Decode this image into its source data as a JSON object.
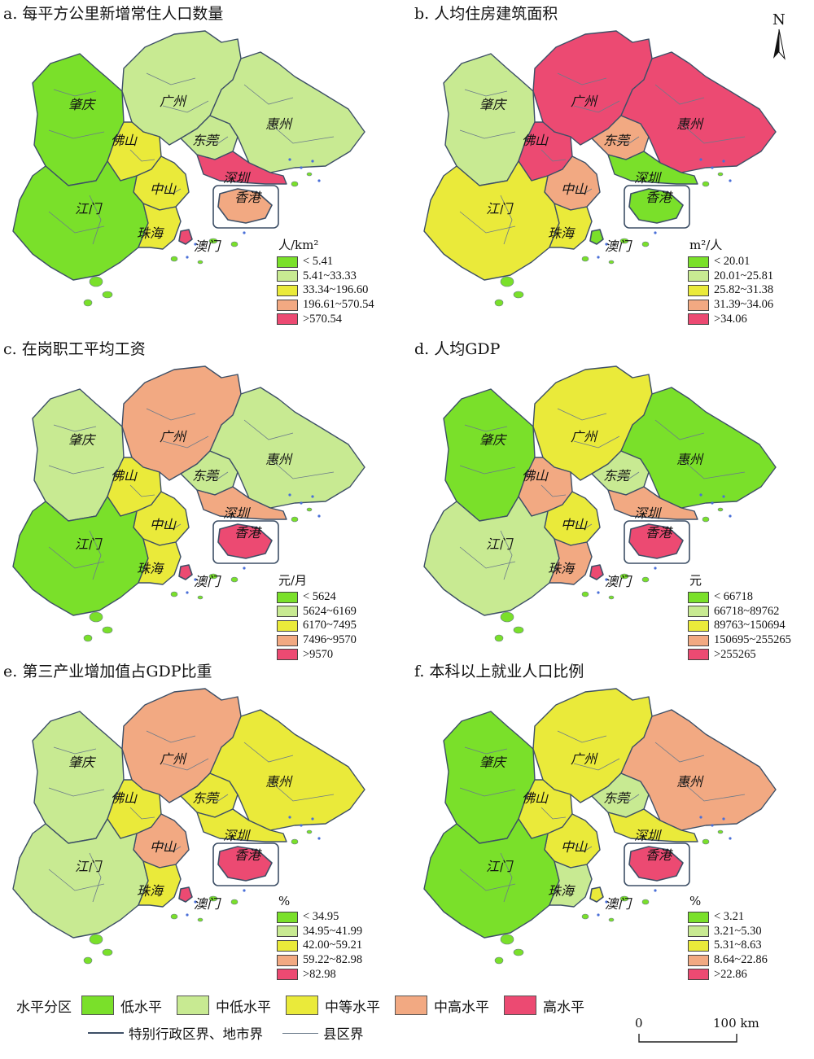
{
  "colors": {
    "low": "#7ae02a",
    "mid_low": "#c8ea92",
    "mid": "#eaea3a",
    "mid_high": "#f2a982",
    "high": "#ec4a72",
    "boundary_major": "#3d4f66",
    "boundary_county": "#6a7a8a",
    "water_dots": "#4a6fd8"
  },
  "north_arrow": {
    "label": "N"
  },
  "city_labels": [
    "肇庆",
    "广州",
    "佛山",
    "东莞",
    "惠州",
    "深圳",
    "中山",
    "江门",
    "香港",
    "珠海",
    "澳门"
  ],
  "panels": [
    {
      "id": "a",
      "title": "a. 每平方公里新增常住人口数量",
      "legend_unit": "人/km²",
      "legend_classes": [
        "< 5.41",
        "5.41~33.33",
        "33.34~196.60",
        "196.61~570.54",
        ">570.54"
      ],
      "levels": {
        "zhaoqing": "low",
        "jiangmen": "low",
        "huizhou": "mid_low",
        "guangzhou": "mid_low",
        "foshan": "mid",
        "dongguan": "mid_low",
        "shenzhen": "high",
        "zhongshan": "mid",
        "zhuhai": "mid",
        "hongkong": "mid_high",
        "macau": "high"
      }
    },
    {
      "id": "b",
      "title": "b. 人均住房建筑面积",
      "legend_unit": "m²/人",
      "legend_classes": [
        "< 20.01",
        "20.01~25.81",
        "25.82~31.38",
        "31.39~34.06",
        ">34.06"
      ],
      "levels": {
        "zhaoqing": "mid_low",
        "jiangmen": "mid",
        "huizhou": "high",
        "guangzhou": "high",
        "foshan": "high",
        "dongguan": "mid_high",
        "shenzhen": "low",
        "zhongshan": "mid_high",
        "zhuhai": "mid",
        "hongkong": "low",
        "macau": "low"
      }
    },
    {
      "id": "c",
      "title": "c. 在岗职工平均工资",
      "legend_unit": "元/月",
      "legend_classes": [
        "< 5624",
        "5624~6169",
        "6170~7495",
        "7496~9570",
        ">9570"
      ],
      "levels": {
        "zhaoqing": "mid_low",
        "jiangmen": "low",
        "huizhou": "mid_low",
        "guangzhou": "mid_high",
        "foshan": "mid",
        "dongguan": "mid_low",
        "shenzhen": "mid_high",
        "zhongshan": "mid",
        "zhuhai": "mid",
        "hongkong": "high",
        "macau": "high"
      }
    },
    {
      "id": "d",
      "title": "d. 人均GDP",
      "legend_unit": "元",
      "legend_classes": [
        "< 66718",
        "66718~89762",
        "89763~150694",
        "150695~255265",
        ">255265"
      ],
      "levels": {
        "zhaoqing": "low",
        "jiangmen": "mid_low",
        "huizhou": "low",
        "guangzhou": "mid",
        "foshan": "mid_high",
        "dongguan": "mid_low",
        "shenzhen": "mid_high",
        "zhongshan": "mid",
        "zhuhai": "mid_high",
        "hongkong": "high",
        "macau": "high"
      }
    },
    {
      "id": "e",
      "title": "e. 第三产业增加值占GDP比重",
      "legend_unit": "%",
      "legend_classes": [
        "< 34.95",
        "34.95~41.99",
        "42.00~59.21",
        "59.22~82.98",
        ">82.98"
      ],
      "levels": {
        "zhaoqing": "mid_low",
        "jiangmen": "mid_low",
        "huizhou": "mid",
        "guangzhou": "mid_high",
        "foshan": "mid",
        "dongguan": "mid",
        "shenzhen": "mid",
        "zhongshan": "mid_high",
        "zhuhai": "mid",
        "hongkong": "high",
        "macau": "high"
      }
    },
    {
      "id": "f",
      "title": "f. 本科以上就业人口比例",
      "legend_unit": "%",
      "legend_classes": [
        "< 3.21",
        "3.21~5.30",
        "5.31~8.63",
        "8.64~22.86",
        ">22.86"
      ],
      "levels": {
        "zhaoqing": "low",
        "jiangmen": "low",
        "huizhou": "mid_high",
        "guangzhou": "mid",
        "foshan": "mid",
        "dongguan": "mid_low",
        "shenzhen": "mid",
        "zhongshan": "mid",
        "zhuhai": "mid_low",
        "hongkong": "high",
        "macau": "mid"
      }
    }
  ],
  "bottom_legend": {
    "title": "水平分区",
    "levels": [
      "低水平",
      "中低水平",
      "中等水平",
      "中高水平",
      "高水平"
    ],
    "line_major": "特别行政区界、地市界",
    "line_county": "县区界"
  },
  "scale_bar": {
    "start": "0",
    "end": "100 km"
  }
}
